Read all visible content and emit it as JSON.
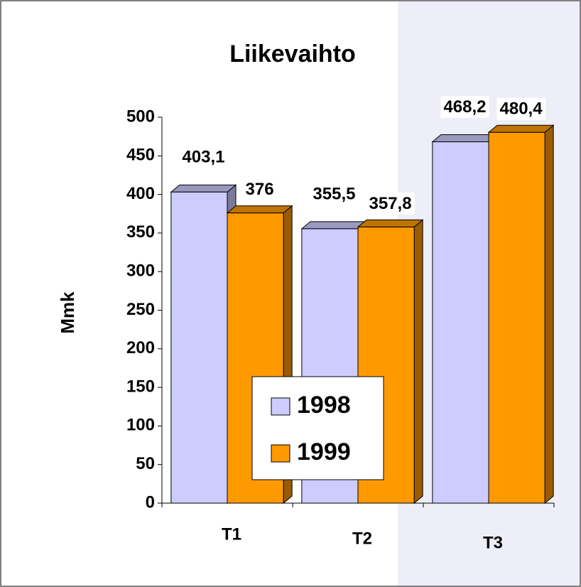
{
  "chart_data": {
    "type": "bar3d",
    "title": "Liikevaihto",
    "y_label": "Mmk",
    "categories": [
      "T1",
      "T2",
      "T3"
    ],
    "series": [
      {
        "name": "1998",
        "color": "#ccccff",
        "values": [
          403.1,
          355.5,
          468.2
        ],
        "value_labels": [
          "403,1",
          "355,5",
          "468,2"
        ]
      },
      {
        "name": "1999",
        "color": "#ff9900",
        "values": [
          376,
          357.8,
          480.4
        ],
        "value_labels": [
          "376",
          "357,8",
          "480,4"
        ]
      }
    ],
    "ylim": [
      0,
      500
    ],
    "yticks": [
      0,
      50,
      100,
      150,
      200,
      250,
      300,
      350,
      400,
      450,
      500
    ]
  }
}
